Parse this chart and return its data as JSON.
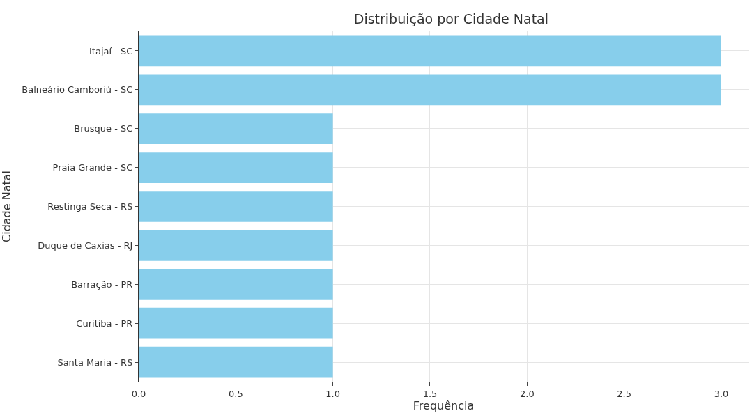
{
  "chart_data": {
    "type": "bar",
    "orientation": "horizontal",
    "title": "Distribuição por Cidade Natal",
    "xlabel": "Frequência",
    "ylabel": "Cidade Natal",
    "categories": [
      "Itajaí - SC",
      "Balneário Camboriú - SC",
      "Brusque - SC",
      "Praia Grande - SC",
      "Restinga Seca - RS",
      "Duque de Caxias - RJ",
      "Barração - PR",
      "Curitiba - PR",
      "Santa Maria - RS"
    ],
    "values": [
      3,
      3,
      1,
      1,
      1,
      1,
      1,
      1,
      1
    ],
    "color": "#87ceeb",
    "xlim": [
      0,
      3.14
    ],
    "xticks": [
      {
        "value": 0,
        "label": "0.0"
      },
      {
        "value": 0.5,
        "label": "0.5"
      },
      {
        "value": 1,
        "label": "1.0"
      },
      {
        "value": 1.5,
        "label": "1.5"
      },
      {
        "value": 2,
        "label": "2.0"
      },
      {
        "value": 2.5,
        "label": "2.5"
      },
      {
        "value": 3,
        "label": "3.0"
      }
    ],
    "grid": true
  }
}
